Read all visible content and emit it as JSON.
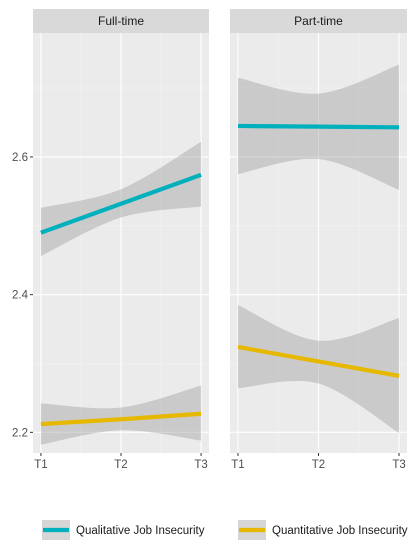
{
  "chart_data": {
    "type": "line",
    "x": [
      "T1",
      "T2",
      "T3"
    ],
    "ylim": [
      2.17,
      2.78
    ],
    "yticks": [
      2.2,
      2.4,
      2.6
    ],
    "ytick_labels": [
      "2.2",
      "2.4",
      "2.6"
    ],
    "grid": true,
    "legend_position": "bottom",
    "series_info": [
      {
        "name": "Qualitative Job Insecurity",
        "color": "#00B0BC"
      },
      {
        "name": "Quantitative Job Insecurity",
        "color": "#E7B800"
      }
    ],
    "panels": [
      {
        "title": "Full-time",
        "series": [
          {
            "name": "Qualitative Job Insecurity",
            "values": [
              2.49,
              2.532,
              2.574
            ],
            "lower": [
              2.456,
              2.512,
              2.528
            ],
            "upper": [
              2.526,
              2.553,
              2.622
            ]
          },
          {
            "name": "Quantitative Job Insecurity",
            "values": [
              2.212,
              2.219,
              2.227
            ],
            "lower": [
              2.182,
              2.203,
              2.188
            ],
            "upper": [
              2.242,
              2.236,
              2.268
            ]
          }
        ]
      },
      {
        "title": "Part-time",
        "series": [
          {
            "name": "Qualitative Job Insecurity",
            "values": [
              2.645,
              2.644,
              2.643
            ],
            "lower": [
              2.575,
              2.597,
              2.552
            ],
            "upper": [
              2.715,
              2.692,
              2.734
            ]
          },
          {
            "name": "Quantitative Job Insecurity",
            "values": [
              2.324,
              2.303,
              2.282
            ],
            "lower": [
              2.264,
              2.271,
              2.199
            ],
            "upper": [
              2.385,
              2.333,
              2.366
            ]
          }
        ]
      }
    ]
  }
}
